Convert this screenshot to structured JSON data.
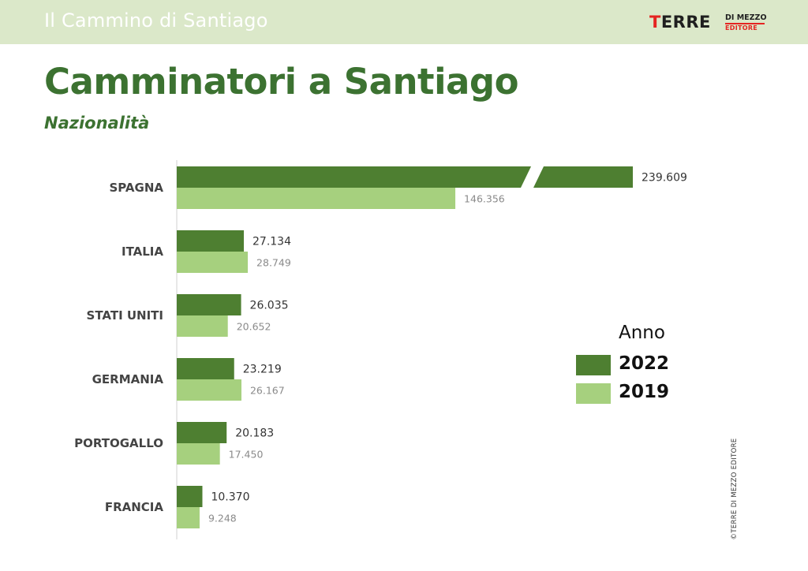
{
  "header": {
    "title": "Il Cammino di Santiago",
    "logo": {
      "main": "TERRE",
      "small_top": "DI MEZZO",
      "small_bottom": "EDITORE"
    }
  },
  "title": "Camminatori a Santiago",
  "subtitle": "Nazionalità",
  "colors": {
    "series_2022": "#4e7f31",
    "series_2019": "#a6d07e",
    "title": "#3c7231",
    "header_bg": "#dbe8c9"
  },
  "legend": {
    "title": "Anno",
    "items": [
      {
        "label": "2022",
        "color": "#4e7f31"
      },
      {
        "label": "2019",
        "color": "#a6d07e"
      }
    ]
  },
  "copyright": "©TERRE DI MEZZO EDITORE",
  "chart_data": {
    "type": "bar",
    "orientation": "horizontal",
    "categories": [
      "SPAGNA",
      "ITALIA",
      "STATI UNITI",
      "GERMANIA",
      "PORTOGALLO",
      "FRANCIA"
    ],
    "series": [
      {
        "name": "2022",
        "values": [
          239609,
          27134,
          26035,
          23219,
          20183,
          10370
        ],
        "labels": [
          "239.609",
          "27.134",
          "26.035",
          "23.219",
          "20.183",
          "10.370"
        ]
      },
      {
        "name": "2019",
        "values": [
          146356,
          28749,
          20652,
          26167,
          17450,
          9248
        ],
        "labels": [
          "146.356",
          "28.749",
          "20.652",
          "26.167",
          "17.450",
          "9.248"
        ]
      }
    ],
    "axis_break": true
  }
}
